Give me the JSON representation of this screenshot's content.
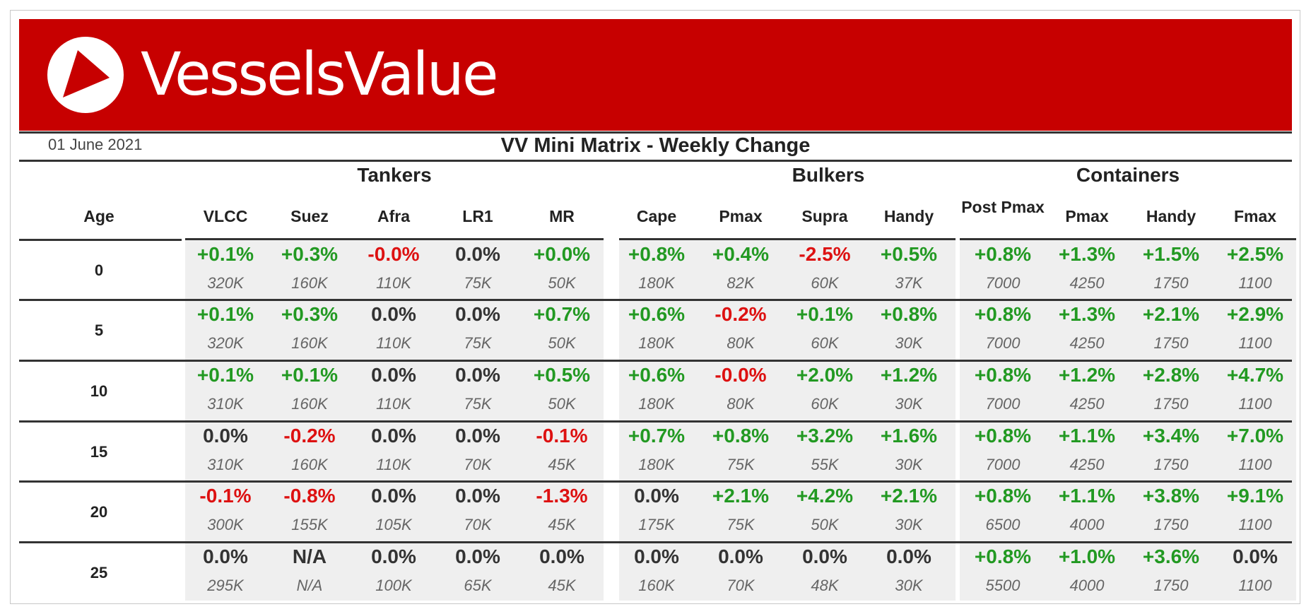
{
  "brand": {
    "name": "VesselsValue",
    "banner_color": "#c70000"
  },
  "header": {
    "date": "01 June 2021",
    "title": "VV Mini Matrix - Weekly Change"
  },
  "groups": [
    "Tankers",
    "Bulkers",
    "Containers"
  ],
  "age_label": "Age",
  "columns": [
    "VLCC",
    "Suez",
    "Afra",
    "LR1",
    "MR",
    "Cape",
    "Pmax",
    "Supra",
    "Handy",
    "Post Pmax",
    "Pmax",
    "Handy",
    "Fmax"
  ],
  "colors": {
    "positive": "#229922",
    "negative": "#dd1111",
    "neutral": "#333333"
  },
  "rows": [
    {
      "age": "0",
      "values": [
        "+0.1%",
        "+0.3%",
        "-0.0%",
        "0.0%",
        "+0.0%",
        "+0.8%",
        "+0.4%",
        "-2.5%",
        "+0.5%",
        "+0.8%",
        "+1.3%",
        "+1.5%",
        "+2.5%"
      ],
      "sizes": [
        "320K",
        "160K",
        "110K",
        "75K",
        "50K",
        "180K",
        "82K",
        "60K",
        "37K",
        "7000",
        "4250",
        "1750",
        "1100"
      ]
    },
    {
      "age": "5",
      "values": [
        "+0.1%",
        "+0.3%",
        "0.0%",
        "0.0%",
        "+0.7%",
        "+0.6%",
        "-0.2%",
        "+0.1%",
        "+0.8%",
        "+0.8%",
        "+1.3%",
        "+2.1%",
        "+2.9%"
      ],
      "sizes": [
        "320K",
        "160K",
        "110K",
        "75K",
        "50K",
        "180K",
        "80K",
        "60K",
        "30K",
        "7000",
        "4250",
        "1750",
        "1100"
      ]
    },
    {
      "age": "10",
      "values": [
        "+0.1%",
        "+0.1%",
        "0.0%",
        "0.0%",
        "+0.5%",
        "+0.6%",
        "-0.0%",
        "+2.0%",
        "+1.2%",
        "+0.8%",
        "+1.2%",
        "+2.8%",
        "+4.7%"
      ],
      "sizes": [
        "310K",
        "160K",
        "110K",
        "75K",
        "50K",
        "180K",
        "80K",
        "60K",
        "30K",
        "7000",
        "4250",
        "1750",
        "1100"
      ]
    },
    {
      "age": "15",
      "values": [
        "0.0%",
        "-0.2%",
        "0.0%",
        "0.0%",
        "-0.1%",
        "+0.7%",
        "+0.8%",
        "+3.2%",
        "+1.6%",
        "+0.8%",
        "+1.1%",
        "+3.4%",
        "+7.0%"
      ],
      "sizes": [
        "310K",
        "160K",
        "110K",
        "70K",
        "45K",
        "180K",
        "75K",
        "55K",
        "30K",
        "7000",
        "4250",
        "1750",
        "1100"
      ]
    },
    {
      "age": "20",
      "values": [
        "-0.1%",
        "-0.8%",
        "0.0%",
        "0.0%",
        "-1.3%",
        "0.0%",
        "+2.1%",
        "+4.2%",
        "+2.1%",
        "+0.8%",
        "+1.1%",
        "+3.8%",
        "+9.1%"
      ],
      "sizes": [
        "300K",
        "155K",
        "105K",
        "70K",
        "45K",
        "175K",
        "75K",
        "50K",
        "30K",
        "6500",
        "4000",
        "1750",
        "1100"
      ]
    },
    {
      "age": "25",
      "values": [
        "0.0%",
        "N/A",
        "0.0%",
        "0.0%",
        "0.0%",
        "0.0%",
        "0.0%",
        "0.0%",
        "0.0%",
        "+0.8%",
        "+1.0%",
        "+3.6%",
        "0.0%"
      ],
      "sizes": [
        "295K",
        "N/A",
        "100K",
        "65K",
        "45K",
        "160K",
        "70K",
        "48K",
        "30K",
        "5500",
        "4000",
        "1750",
        "1100"
      ]
    }
  ]
}
